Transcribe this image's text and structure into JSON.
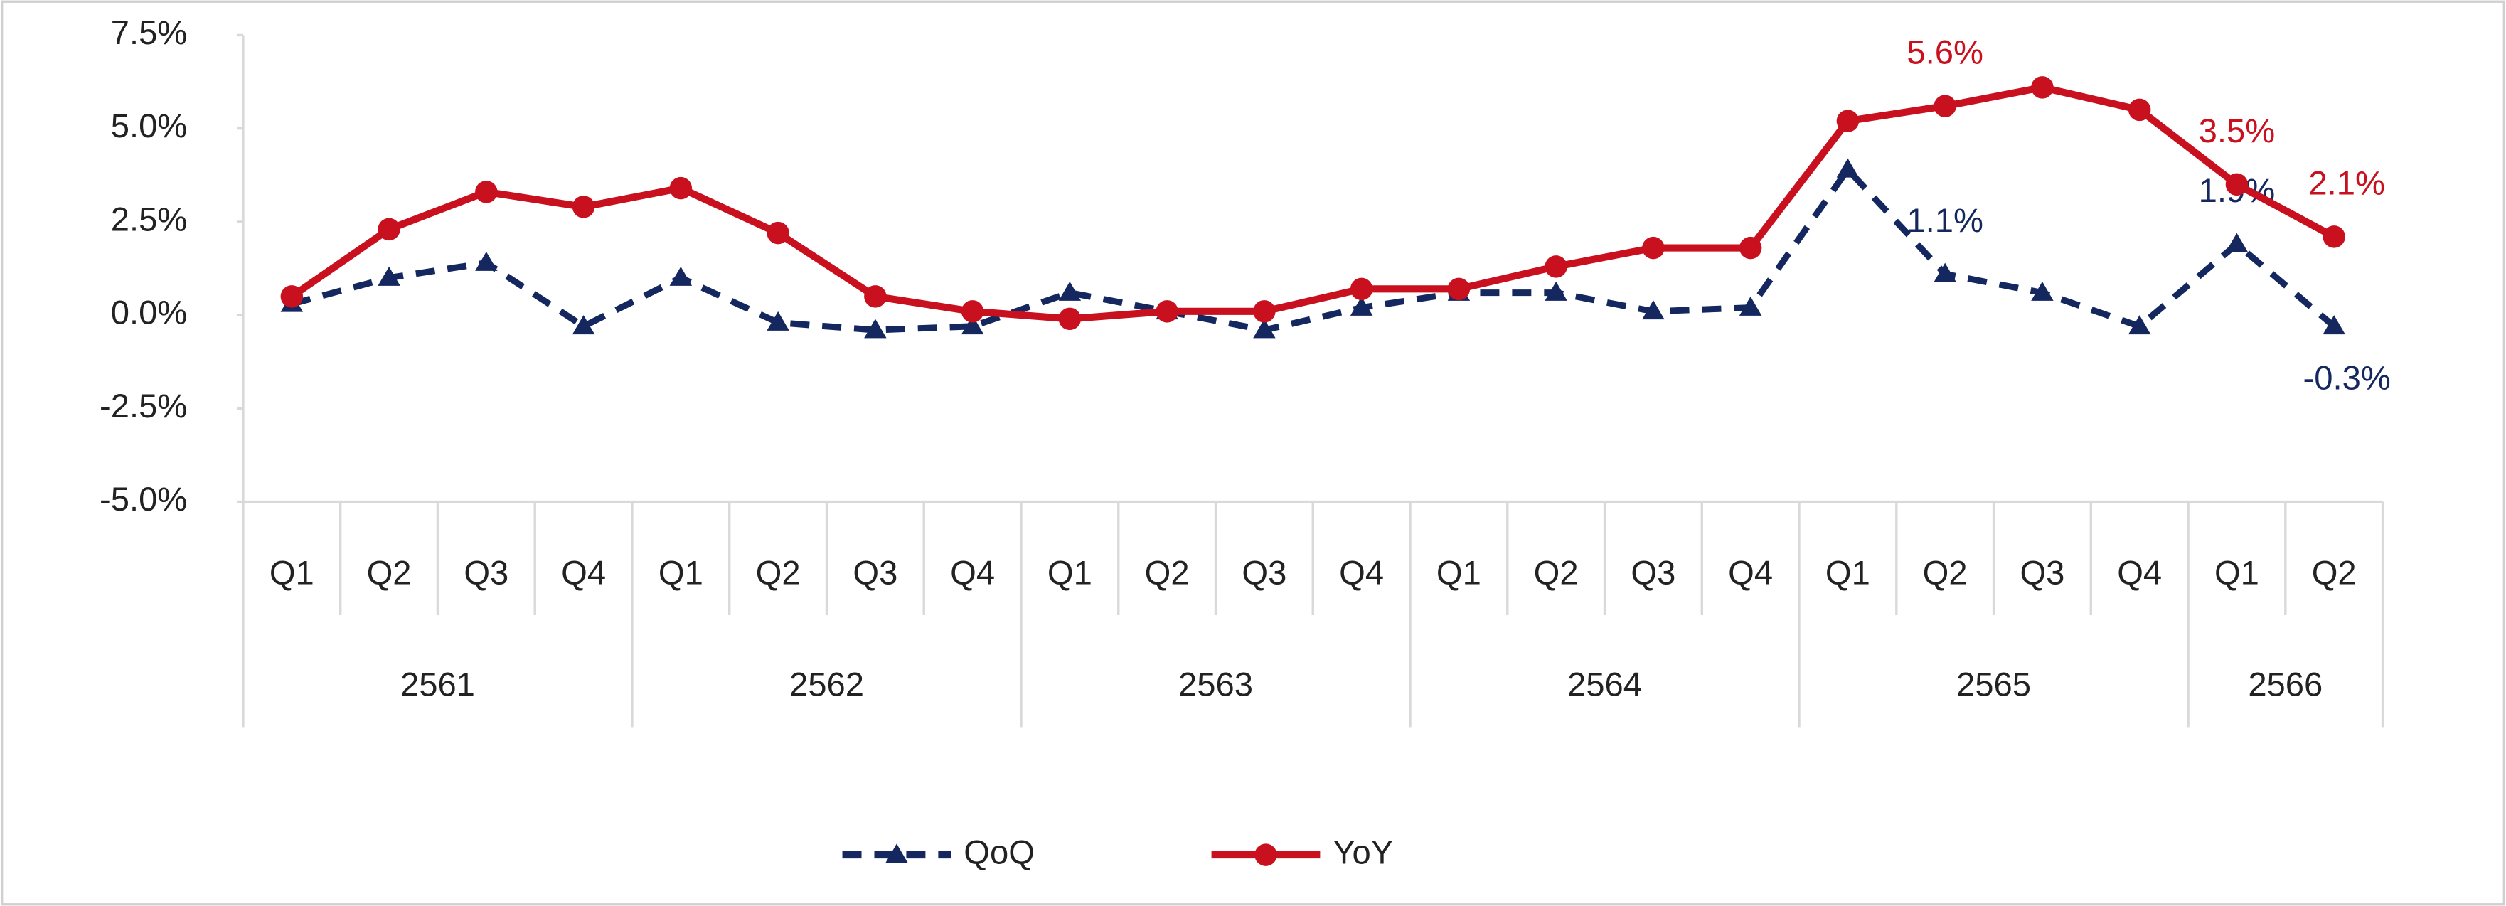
{
  "chart_data": {
    "type": "line",
    "category_groups": [
      {
        "name": "2561",
        "categories": [
          "Q1",
          "Q2",
          "Q3",
          "Q4"
        ]
      },
      {
        "name": "2562",
        "categories": [
          "Q1",
          "Q2",
          "Q3",
          "Q4"
        ]
      },
      {
        "name": "2563",
        "categories": [
          "Q1",
          "Q2",
          "Q3",
          "Q4"
        ]
      },
      {
        "name": "2564",
        "categories": [
          "Q1",
          "Q2",
          "Q3",
          "Q4"
        ]
      },
      {
        "name": "2565",
        "categories": [
          "Q1",
          "Q2",
          "Q3",
          "Q4"
        ]
      },
      {
        "name": "2566",
        "categories": [
          "Q1",
          "Q2"
        ]
      }
    ],
    "series": [
      {
        "name": "QoQ",
        "color": "#14285f",
        "marker": "triangle",
        "dashed": true,
        "values": [
          0.3,
          1.0,
          1.4,
          -0.3,
          1.0,
          -0.2,
          -0.4,
          -0.3,
          0.6,
          0.1,
          -0.4,
          0.2,
          0.6,
          0.6,
          0.1,
          0.2,
          3.9,
          1.1,
          0.6,
          -0.3,
          1.9,
          -0.3
        ],
        "value_labels": [
          null,
          null,
          null,
          null,
          null,
          null,
          null,
          null,
          null,
          null,
          null,
          null,
          null,
          null,
          null,
          null,
          null,
          "1.1%",
          null,
          null,
          "1.9%",
          "-0.3%"
        ]
      },
      {
        "name": "YoY",
        "color": "#c8101e",
        "marker": "circle",
        "dashed": false,
        "values": [
          0.5,
          2.3,
          3.3,
          2.9,
          3.4,
          2.2,
          0.5,
          0.1,
          -0.1,
          0.1,
          0.1,
          0.7,
          0.7,
          1.3,
          1.8,
          1.8,
          5.2,
          5.6,
          6.1,
          5.5,
          3.5,
          2.1
        ],
        "value_labels": [
          null,
          null,
          null,
          null,
          null,
          null,
          null,
          null,
          null,
          null,
          null,
          null,
          null,
          null,
          null,
          null,
          null,
          "5.6%",
          null,
          null,
          "3.5%",
          "2.1%"
        ]
      }
    ],
    "ylim": [
      -5.0,
      7.5
    ],
    "yticks": [
      {
        "value": -5.0,
        "label": "-5.0%"
      },
      {
        "value": -2.5,
        "label": "-2.5%"
      },
      {
        "value": 0.0,
        "label": "0.0%"
      },
      {
        "value": 2.5,
        "label": "2.5%"
      },
      {
        "value": 5.0,
        "label": "5.0%"
      },
      {
        "value": 7.5,
        "label": "7.5%"
      }
    ],
    "grid": false,
    "legend": "bottom"
  }
}
